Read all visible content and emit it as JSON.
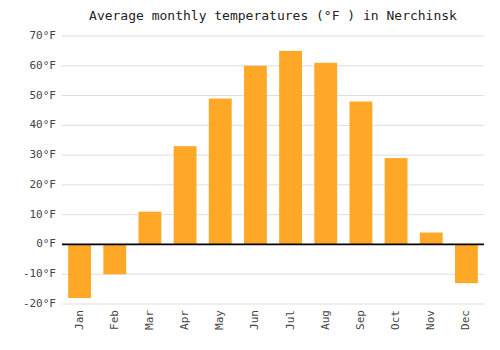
{
  "chart_data": {
    "type": "bar",
    "title": "Average monthly temperatures (°F ) in Nerchinsk",
    "categories": [
      "Jan",
      "Feb",
      "Mar",
      "Apr",
      "May",
      "Jun",
      "Jul",
      "Aug",
      "Sep",
      "Oct",
      "Nov",
      "Dec"
    ],
    "values": [
      -18,
      -10,
      11,
      33,
      49,
      60,
      65,
      61,
      48,
      29,
      4,
      -13
    ],
    "color": "#FFA726",
    "ylim": [
      -20,
      70
    ],
    "yticks": [
      {
        "value": -20,
        "label": "-20°F"
      },
      {
        "value": -10,
        "label": "-10°F"
      },
      {
        "value": 0,
        "label": "0°F"
      },
      {
        "value": 10,
        "label": "10°F"
      },
      {
        "value": 20,
        "label": "20°F"
      },
      {
        "value": 30,
        "label": "30°F"
      },
      {
        "value": 40,
        "label": "40°F"
      },
      {
        "value": 50,
        "label": "50°F"
      },
      {
        "value": 60,
        "label": "60°F"
      },
      {
        "value": 70,
        "label": "70°F"
      }
    ],
    "grid": true
  }
}
